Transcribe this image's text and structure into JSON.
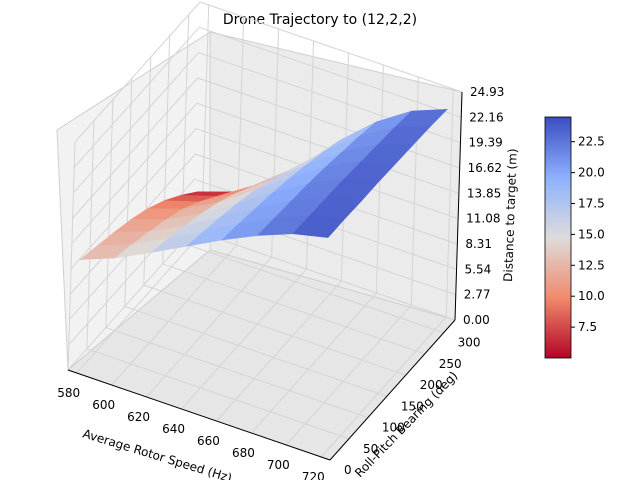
{
  "chart_data": {
    "type": "surface3d",
    "title": "Drone Trajectory to (12,2,2)",
    "xlabel": "Average Rotor Speed (Hz)",
    "ylabel": "Roll-Pitch Bearing (deg)",
    "zlabel": "Distance to target (m)",
    "colormap": "coolwarm_r",
    "xlim": [
      575,
      725
    ],
    "ylim": [
      0,
      330
    ],
    "zlim": [
      0,
      24.93
    ],
    "x_ticks": [
      "580",
      "600",
      "620",
      "640",
      "660",
      "680",
      "700",
      "720"
    ],
    "y_ticks": [
      "0",
      "50",
      "100",
      "150",
      "200",
      "250",
      "300"
    ],
    "z_ticks": [
      "0.00",
      "2.77",
      "5.54",
      "8.31",
      "11.08",
      "13.85",
      "16.62",
      "19.39",
      "22.16",
      "24.93"
    ],
    "colorbar": {
      "min": 5.0,
      "max": 24.5,
      "ticks": [
        "7.5",
        "10.0",
        "12.5",
        "15.0",
        "17.5",
        "20.0",
        "22.5"
      ],
      "tick_values": [
        7.5,
        10.0,
        12.5,
        15.0,
        17.5,
        20.0,
        22.5
      ]
    },
    "grid": true,
    "speeds": [
      580,
      600,
      620,
      640,
      660,
      680,
      700,
      720
    ],
    "bearings": [
      0,
      45,
      90,
      135,
      180,
      225,
      270,
      315
    ],
    "distance": [
      [
        12.4,
        13.9,
        15.8,
        17.8,
        19.8,
        21.6,
        23.1,
        24.0
      ],
      [
        11.8,
        13.3,
        15.2,
        17.3,
        19.5,
        21.4,
        23.0,
        24.0
      ],
      [
        11.2,
        12.6,
        14.5,
        16.8,
        19.1,
        21.2,
        22.9,
        23.9
      ],
      [
        10.5,
        11.8,
        13.8,
        16.2,
        18.7,
        21.0,
        22.8,
        23.9
      ],
      [
        9.6,
        10.9,
        12.9,
        15.5,
        18.2,
        20.7,
        22.6,
        23.8
      ],
      [
        8.4,
        9.6,
        11.8,
        14.6,
        17.6,
        20.3,
        22.4,
        23.7
      ],
      [
        6.9,
        8.1,
        10.5,
        13.5,
        16.9,
        19.9,
        22.2,
        23.6
      ],
      [
        5.2,
        6.5,
        9.0,
        12.3,
        16.1,
        19.4,
        21.9,
        23.4
      ]
    ]
  }
}
